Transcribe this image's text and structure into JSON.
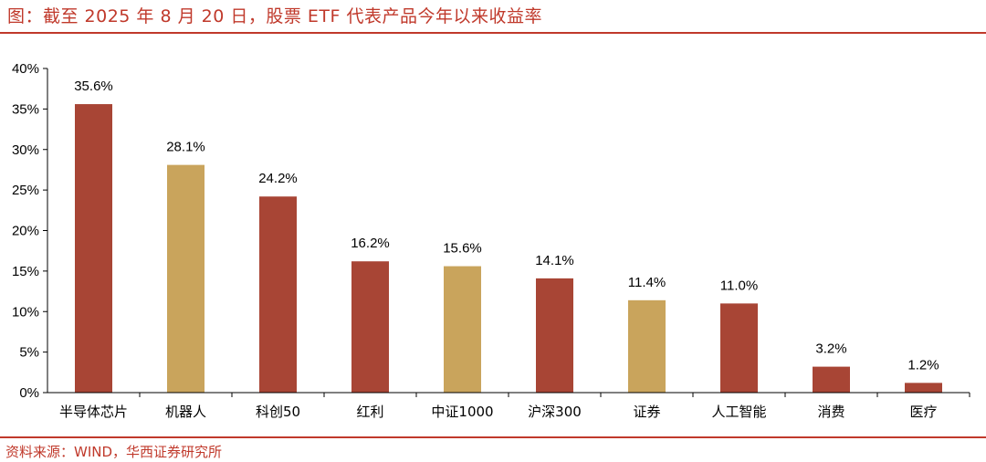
{
  "header": {
    "title": "图：截至 2025 年 8 月 20 日，股票 ETF 代表产品今年以来收益率"
  },
  "footer": {
    "source": "资料来源：WIND，华西证券研究所"
  },
  "colors": {
    "accent": "#c0392b",
    "primary_bar": "#a84535",
    "highlight_bar": "#c9a45c"
  },
  "chart_data": {
    "type": "bar",
    "categories": [
      "半导体芯片",
      "机器人",
      "科创50",
      "红利",
      "中证1000",
      "沪深300",
      "证券",
      "人工智能",
      "消费",
      "医疗"
    ],
    "values": [
      35.6,
      28.1,
      24.2,
      16.2,
      15.6,
      14.1,
      11.4,
      11.0,
      3.2,
      1.2
    ],
    "data_labels": [
      "35.6%",
      "28.1%",
      "24.2%",
      "16.2%",
      "15.6%",
      "14.1%",
      "11.4%",
      "11.0%",
      "3.2%",
      "1.2%"
    ],
    "bar_colors": [
      "#a84535",
      "#c9a45c",
      "#a84535",
      "#a84535",
      "#c9a45c",
      "#a84535",
      "#c9a45c",
      "#a84535",
      "#a84535",
      "#a84535"
    ],
    "ylim": [
      0,
      40
    ],
    "yticks": [
      "0%",
      "5%",
      "10%",
      "15%",
      "20%",
      "25%",
      "30%",
      "35%",
      "40%"
    ],
    "grid": false,
    "xlabel": "",
    "ylabel": ""
  }
}
